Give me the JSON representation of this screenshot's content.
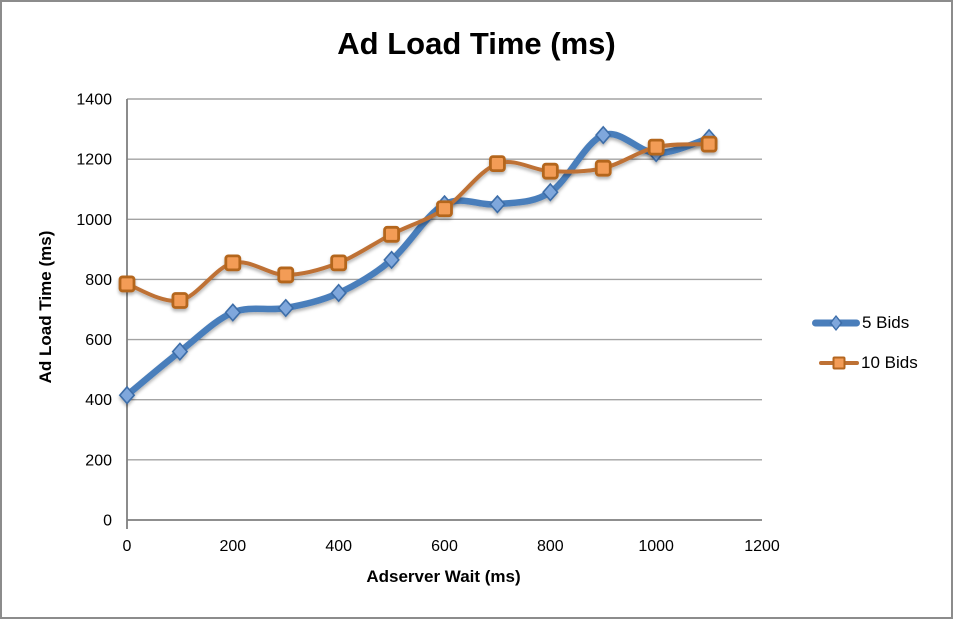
{
  "window": {
    "background": "#ffffff",
    "border_color": "#8c8c8c"
  },
  "chart_data": {
    "type": "line",
    "title": "Ad Load Time (ms)",
    "xlabel": "Adserver Wait (ms)",
    "ylabel": "Ad Load Time (ms)",
    "x": [
      0,
      100,
      200,
      300,
      400,
      500,
      600,
      700,
      800,
      900,
      1000,
      1100
    ],
    "series": [
      {
        "name": "5 Bids",
        "marker": "diamond",
        "line_color": "#4a7ebb",
        "marker_fill": "#7fa7dc",
        "marker_border": "#3c6da8",
        "line_width": 6.5,
        "values": [
          415,
          560,
          690,
          705,
          755,
          865,
          1050,
          1050,
          1090,
          1280,
          1220,
          1270
        ]
      },
      {
        "name": "10 Bids",
        "marker": "square",
        "line_color": "#be7134",
        "marker_fill": "#f39c57",
        "marker_border": "#b4661f",
        "line_width": 4,
        "values": [
          785,
          730,
          855,
          815,
          855,
          950,
          1035,
          1185,
          1160,
          1170,
          1240,
          1250
        ]
      }
    ],
    "xlim": [
      0,
      1200
    ],
    "ylim": [
      0,
      1400
    ],
    "x_ticks": [
      0,
      200,
      400,
      600,
      800,
      1000,
      1200
    ],
    "y_ticks": [
      0,
      200,
      400,
      600,
      800,
      1000,
      1200,
      1400
    ],
    "grid": true,
    "smooth_lines": true,
    "legend_position": "right",
    "grid_color": "#a3a3a3",
    "axis_color": "#7f7f7f"
  }
}
